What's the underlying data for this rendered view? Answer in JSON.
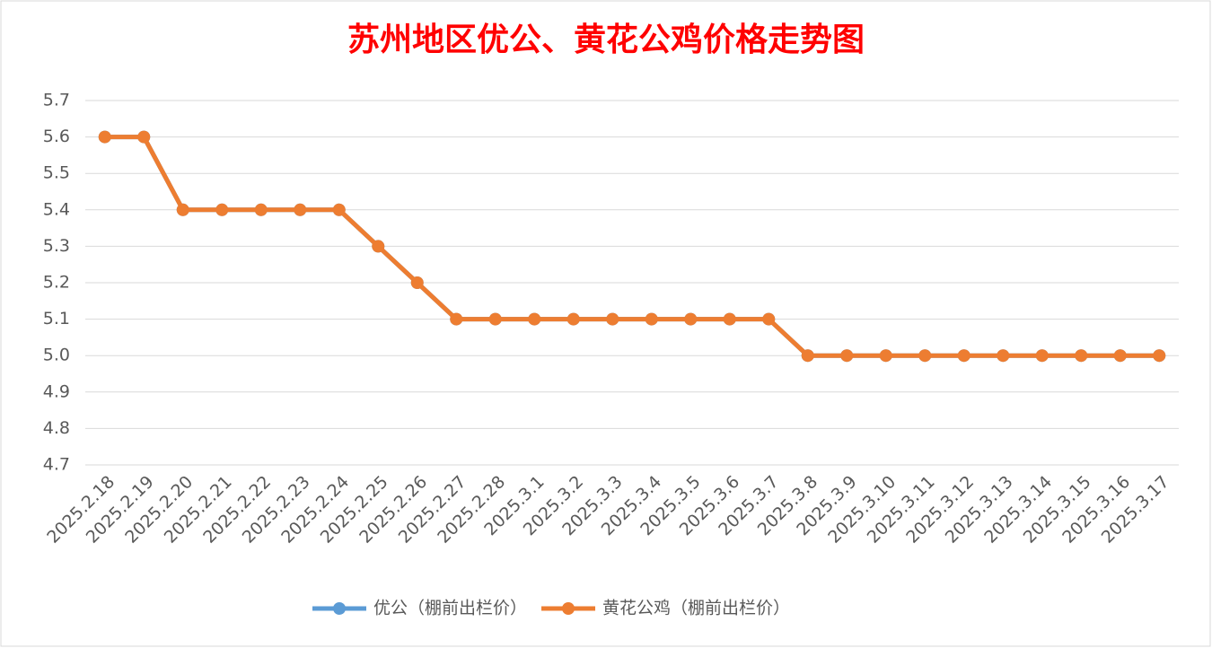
{
  "chart_data": {
    "type": "line",
    "title": "苏州地区优公、黄花公鸡价格走势图",
    "categories": [
      "2025.2.18",
      "2025.2.19",
      "2025.2.20",
      "2025.2.21",
      "2025.2.22",
      "2025.2.23",
      "2025.2.24",
      "2025.2.25",
      "2025.2.26",
      "2025.2.27",
      "2025.2.28",
      "2025.3.1",
      "2025.3.2",
      "2025.3.3",
      "2025.3.4",
      "2025.3.5",
      "2025.3.6",
      "2025.3.7",
      "2025.3.8",
      "2025.3.9",
      "2025.3.10",
      "2025.3.11",
      "2025.3.12",
      "2025.3.13",
      "2025.3.14",
      "2025.3.15",
      "2025.3.16",
      "2025.3.17"
    ],
    "series": [
      {
        "name": "优公（棚前出栏价）",
        "color": "#5b9bd5",
        "values": [
          5.6,
          5.6,
          5.4,
          5.4,
          5.4,
          5.4,
          5.4,
          5.3,
          5.2,
          5.1,
          5.1,
          5.1,
          5.1,
          5.1,
          5.1,
          5.1,
          5.1,
          5.1,
          5,
          5,
          5,
          5,
          5,
          5,
          5,
          5,
          5,
          5
        ]
      },
      {
        "name": "黄花公鸡（棚前出栏价）",
        "color": "#ed7d31",
        "values": [
          5.6,
          5.6,
          5.4,
          5.4,
          5.4,
          5.4,
          5.4,
          5.3,
          5.2,
          5.1,
          5.1,
          5.1,
          5.1,
          5.1,
          5.1,
          5.1,
          5.1,
          5.1,
          5,
          5,
          5,
          5,
          5,
          5,
          5,
          5,
          5,
          5
        ]
      }
    ],
    "ylim": [
      4.7,
      5.7
    ],
    "yticks": [
      4.7,
      4.8,
      4.9,
      {
        "value": 5,
        "label": "5.0"
      },
      5.1,
      5.2,
      5.3,
      5.4,
      5.5,
      5.6,
      5.7
    ],
    "grid": true,
    "legend": "bottom"
  }
}
